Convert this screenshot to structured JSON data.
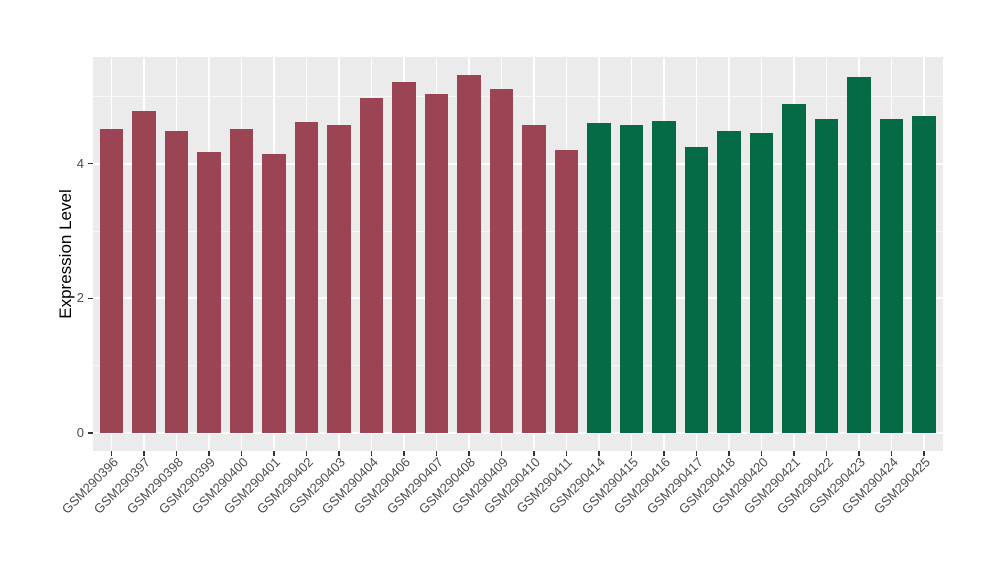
{
  "figure": {
    "background": "#FFFFFF",
    "panel_background": "#EBEBEB",
    "grid_major_color": "#FFFFFF",
    "grid_minor_color": "rgba(255,255,255,0.65)",
    "tick_mark_color": "#333333",
    "tick_label_color": "#4D4D4D",
    "axis_title_color": "#000000"
  },
  "chart_data": {
    "type": "bar",
    "title": "",
    "xlabel": "",
    "ylabel": "Expression Level",
    "ylim": [
      0,
      5.6
    ],
    "yticks_major": [
      0,
      2,
      4
    ],
    "yticks_minor": [
      1,
      3,
      5
    ],
    "grid": true,
    "legend": false,
    "bar_orientation": "vertical",
    "x_label_angle_deg": 45,
    "categories": [
      "GSM290396",
      "GSM290397",
      "GSM290398",
      "GSM290399",
      "GSM290400",
      "GSM290401",
      "GSM290402",
      "GSM290403",
      "GSM290404",
      "GSM290406",
      "GSM290407",
      "GSM290408",
      "GSM290409",
      "GSM290410",
      "GSM290411",
      "GSM290414",
      "GSM290415",
      "GSM290416",
      "GSM290417",
      "GSM290418",
      "GSM290420",
      "GSM290421",
      "GSM290422",
      "GSM290423",
      "GSM290424",
      "GSM290425"
    ],
    "values": [
      4.51,
      4.79,
      4.48,
      4.18,
      4.52,
      4.15,
      4.62,
      4.58,
      4.98,
      5.22,
      5.04,
      5.32,
      5.11,
      4.58,
      4.2,
      4.61,
      4.57,
      4.64,
      4.25,
      4.49,
      4.46,
      4.89,
      4.67,
      5.29,
      4.67,
      4.71
    ],
    "groups": [
      "group1",
      "group1",
      "group1",
      "group1",
      "group1",
      "group1",
      "group1",
      "group1",
      "group1",
      "group1",
      "group1",
      "group1",
      "group1",
      "group1",
      "group1",
      "group2",
      "group2",
      "group2",
      "group2",
      "group2",
      "group2",
      "group2",
      "group2",
      "group2",
      "group2",
      "group2"
    ],
    "group_colors": {
      "group1": "#9B4453",
      "group2": "#046B44"
    }
  }
}
